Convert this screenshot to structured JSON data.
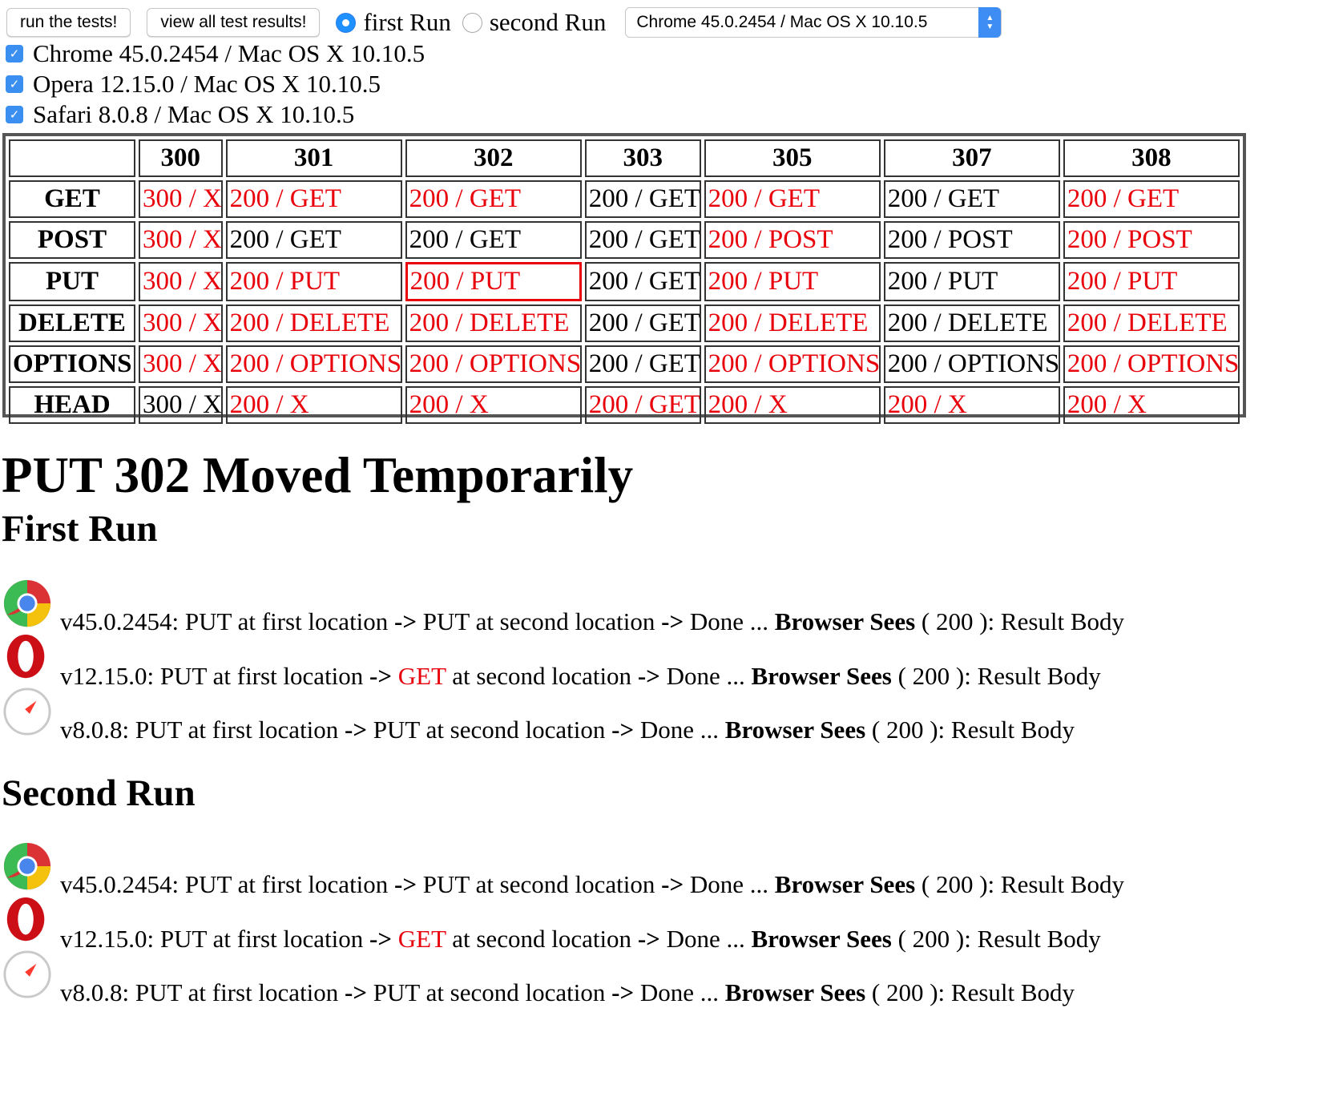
{
  "toolbar": {
    "run_button": "run the tests!",
    "view_button": "view all test results!",
    "radio_first": "first Run",
    "radio_second": "second Run",
    "select_value": "Chrome 45.0.2454 / Mac OS X 10.10.5"
  },
  "browsers": [
    "Chrome 45.0.2454 / Mac OS X 10.10.5",
    "Opera 12.15.0 / Mac OS X 10.10.5",
    "Safari 8.0.8 / Mac OS X 10.10.5"
  ],
  "table": {
    "columns": [
      "",
      "300",
      "301",
      "302",
      "303",
      "305",
      "307",
      "308"
    ],
    "rows": [
      {
        "method": "GET",
        "cells": [
          "300 / X",
          "200 / GET",
          "200 / GET",
          "200 / GET",
          "200 / GET",
          "200 / GET",
          "200 / GET"
        ]
      },
      {
        "method": "POST",
        "cells": [
          "300 / X",
          "200 / GET",
          "200 / GET",
          "200 / GET",
          "200 / POST",
          "200 / POST",
          "200 / POST"
        ]
      },
      {
        "method": "PUT",
        "cells": [
          "300 / X",
          "200 / PUT",
          "200 / PUT",
          "200 / GET",
          "200 / PUT",
          "200 / PUT",
          "200 / PUT"
        ]
      },
      {
        "method": "DELETE",
        "cells": [
          "300 / X",
          "200 / DELETE",
          "200 / DELETE",
          "200 / GET",
          "200 / DELETE",
          "200 / DELETE",
          "200 / DELETE"
        ]
      },
      {
        "method": "OPTIONS",
        "cells": [
          "300 / X",
          "200 / OPTIONS",
          "200 / OPTIONS",
          "200 / GET",
          "200 / OPTIONS",
          "200 / OPTIONS",
          "200 / OPTIONS"
        ]
      },
      {
        "method": "HEAD",
        "cells": [
          "300 / X",
          "200 / X",
          "200 / X",
          "200 / GET",
          "200 / X",
          "200 / X",
          "200 / X"
        ]
      }
    ],
    "red_cells": [
      [
        true,
        true,
        true,
        false,
        true,
        false,
        true
      ],
      [
        true,
        false,
        false,
        false,
        true,
        false,
        true
      ],
      [
        true,
        true,
        true,
        false,
        true,
        false,
        true
      ],
      [
        true,
        true,
        true,
        false,
        true,
        false,
        true
      ],
      [
        true,
        true,
        true,
        false,
        true,
        false,
        true
      ],
      [
        false,
        true,
        true,
        true,
        true,
        true,
        true
      ]
    ],
    "selected_cell": {
      "row": 2,
      "col": 2
    }
  },
  "detail": {
    "title": "PUT 302 Moved Temporarily",
    "runs": [
      {
        "heading": "First Run",
        "results": [
          {
            "icon": "chrome-icon",
            "version": "v45.0.2454:",
            "first": "PUT at first location",
            "arrow1": "->",
            "second_method": "PUT",
            "second_method_red": false,
            "second_rest": "at second location",
            "arrow2": "->",
            "done": "Done ...",
            "sees_label": "Browser Sees",
            "status": "( 200 ):",
            "body": "Result Body"
          },
          {
            "icon": "opera-icon",
            "version": "v12.15.0:",
            "first": "PUT at first location",
            "arrow1": "->",
            "second_method": "GET",
            "second_method_red": true,
            "second_rest": "at second location",
            "arrow2": "->",
            "done": "Done ...",
            "sees_label": "Browser Sees",
            "status": "( 200 ):",
            "body": "Result Body"
          },
          {
            "icon": "safari-icon",
            "version": "v8.0.8:",
            "first": "PUT at first location",
            "arrow1": "->",
            "second_method": "PUT",
            "second_method_red": false,
            "second_rest": "at second location",
            "arrow2": "->",
            "done": "Done ...",
            "sees_label": "Browser Sees",
            "status": "( 200 ):",
            "body": "Result Body"
          }
        ]
      },
      {
        "heading": "Second Run",
        "results": [
          {
            "icon": "chrome-icon",
            "version": "v45.0.2454:",
            "first": "PUT at first location",
            "arrow1": "->",
            "second_method": "PUT",
            "second_method_red": false,
            "second_rest": "at second location",
            "arrow2": "->",
            "done": "Done ...",
            "sees_label": "Browser Sees",
            "status": "( 200 ):",
            "body": "Result Body"
          },
          {
            "icon": "opera-icon",
            "version": "v12.15.0:",
            "first": "PUT at first location",
            "arrow1": "->",
            "second_method": "GET",
            "second_method_red": true,
            "second_rest": "at second location",
            "arrow2": "->",
            "done": "Done ...",
            "sees_label": "Browser Sees",
            "status": "( 200 ):",
            "body": "Result Body"
          },
          {
            "icon": "safari-icon",
            "version": "v8.0.8:",
            "first": "PUT at first location",
            "arrow1": "->",
            "second_method": "PUT",
            "second_method_red": false,
            "second_rest": "at second location",
            "arrow2": "->",
            "done": "Done ...",
            "sees_label": "Browser Sees",
            "status": "( 200 ):",
            "body": "Result Body"
          }
        ]
      }
    ]
  },
  "colors": {
    "red": "#e8000b",
    "accent": "#3b8ff0",
    "border": "#333333"
  }
}
